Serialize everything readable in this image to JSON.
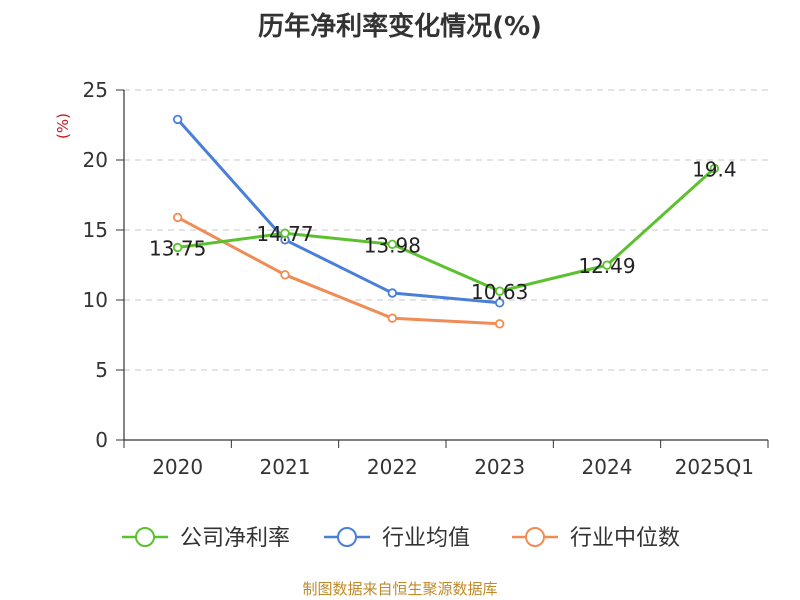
{
  "title": "历年净利率变化情况(%)",
  "source": "制图数据来自恒生聚源数据库",
  "chart_data": {
    "type": "line",
    "title": "历年净利率变化情况(%)",
    "ylabel": "(%)",
    "categories": [
      "2020",
      "2021",
      "2022",
      "2023",
      "2024",
      "2025Q1"
    ],
    "yticks": [
      0,
      5,
      10,
      15,
      20,
      25
    ],
    "ylim": [
      0,
      25
    ],
    "grid": true,
    "legend": "bottom",
    "series": [
      {
        "name": "公司净利率",
        "color": "#5bc12e",
        "values": [
          13.75,
          14.77,
          13.98,
          10.63,
          12.49,
          19.4
        ],
        "labels": [
          "13.75",
          "14.77",
          "13.98",
          "10.63",
          "12.49",
          "19.4"
        ]
      },
      {
        "name": "行业均值",
        "color": "#4a7fd9",
        "values": [
          22.9,
          14.3,
          10.5,
          9.8,
          null,
          null
        ]
      },
      {
        "name": "行业中位数",
        "color": "#f08c55",
        "values": [
          15.9,
          11.8,
          8.7,
          8.3,
          null,
          null
        ]
      }
    ]
  }
}
